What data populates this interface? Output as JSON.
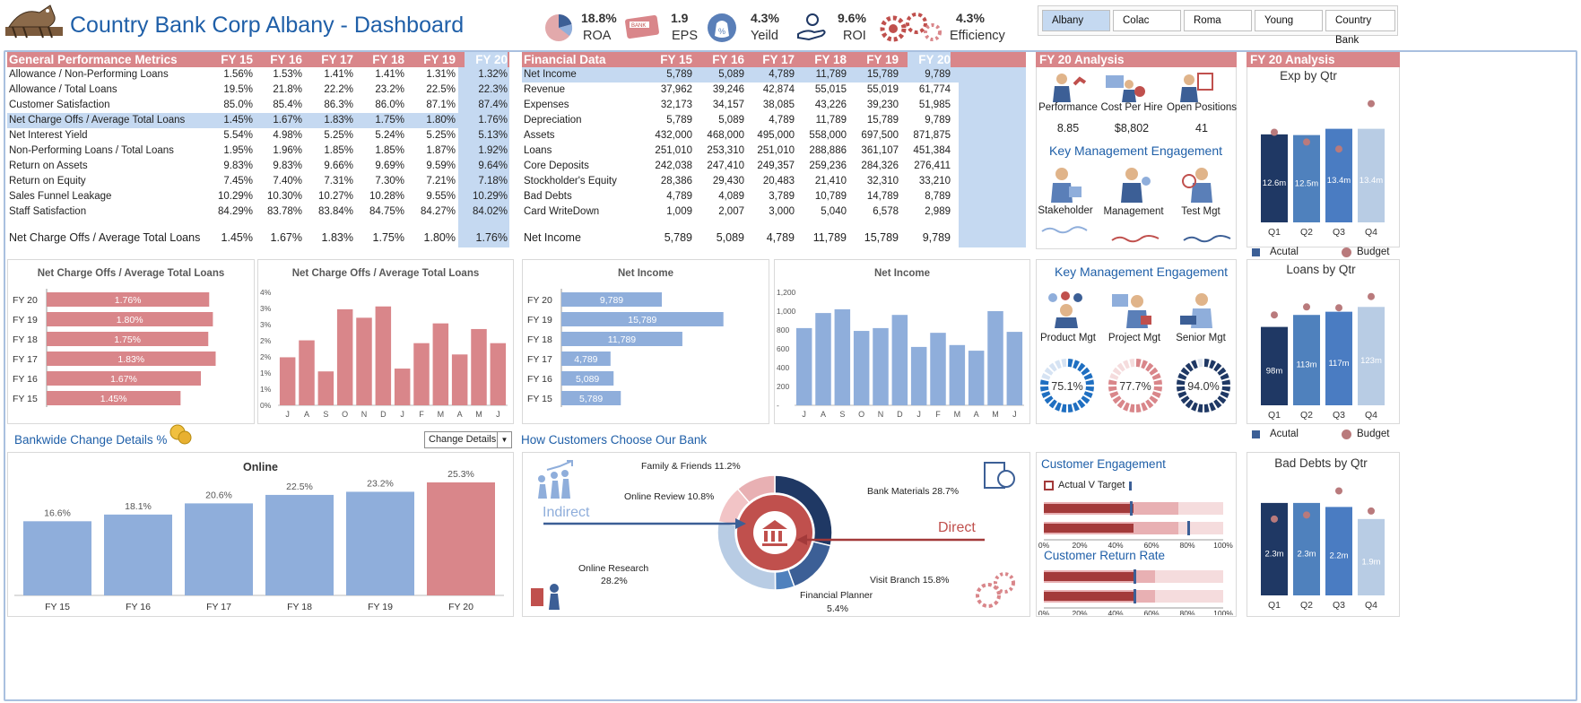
{
  "header": {
    "title": "Country Bank Corp Albany - Dashboard",
    "kpis": [
      {
        "value": "18.8%",
        "label": "ROA",
        "icon": "pie-chart-icon"
      },
      {
        "value": "1.9",
        "label": "EPS",
        "icon": "bank-card-icon"
      },
      {
        "value": "4.3%",
        "label": "Yeild",
        "icon": "money-bag-icon"
      },
      {
        "value": "9.6%",
        "label": "ROI",
        "icon": "hand-coin-icon"
      },
      {
        "value": "4.3%",
        "label": "Efficiency",
        "icon": "gears-icon"
      }
    ],
    "branches": [
      "Albany",
      "Colac",
      "Roma",
      "Young",
      "Country Bank"
    ],
    "selected_branch": "Albany"
  },
  "colors": {
    "red": "#d9868a",
    "blue": "#8faedb",
    "navy": "#1f3864",
    "lightblue": "#c5d9f1"
  },
  "gpm": {
    "headers": [
      "General Performance Metrics",
      "FY 15",
      "FY 16",
      "FY 17",
      "FY 18",
      "FY 19",
      "FY 20"
    ],
    "rows": [
      {
        "name": "Allowance / Non-Performing Loans",
        "v": [
          "1.56%",
          "1.53%",
          "1.41%",
          "1.41%",
          "1.31%",
          "1.32%"
        ]
      },
      {
        "name": "Allowance / Total Loans",
        "v": [
          "19.5%",
          "21.8%",
          "22.2%",
          "23.2%",
          "22.5%",
          "22.3%"
        ]
      },
      {
        "name": "Customer Satisfaction",
        "v": [
          "85.0%",
          "85.4%",
          "86.3%",
          "86.0%",
          "87.1%",
          "87.4%"
        ]
      },
      {
        "name": "Net Charge Offs / Average Total Loans",
        "v": [
          "1.45%",
          "1.67%",
          "1.83%",
          "1.75%",
          "1.80%",
          "1.76%"
        ]
      },
      {
        "name": "Net Interest Yield",
        "v": [
          "5.54%",
          "4.98%",
          "5.25%",
          "5.24%",
          "5.25%",
          "5.13%"
        ]
      },
      {
        "name": "Non-Performing Loans / Total Loans",
        "v": [
          "1.95%",
          "1.96%",
          "1.85%",
          "1.85%",
          "1.87%",
          "1.92%"
        ]
      },
      {
        "name": "Return on Assets",
        "v": [
          "9.83%",
          "9.83%",
          "9.66%",
          "9.69%",
          "9.59%",
          "9.64%"
        ]
      },
      {
        "name": "Return on Equity",
        "v": [
          "7.45%",
          "7.40%",
          "7.31%",
          "7.30%",
          "7.21%",
          "7.18%"
        ]
      },
      {
        "name": "Sales Funnel Leakage",
        "v": [
          "10.29%",
          "10.30%",
          "10.27%",
          "10.28%",
          "9.55%",
          "10.29%"
        ]
      },
      {
        "name": "Staff Satisfaction",
        "v": [
          "84.29%",
          "83.78%",
          "83.84%",
          "84.75%",
          "84.27%",
          "84.02%"
        ]
      }
    ],
    "summary": {
      "name": "Net Charge Offs / Average Total Loans",
      "v": [
        "1.45%",
        "1.67%",
        "1.83%",
        "1.75%",
        "1.80%",
        "1.76%"
      ]
    }
  },
  "fin": {
    "headers": [
      "Financial Data",
      "FY 15",
      "FY 16",
      "FY 17",
      "FY 18",
      "FY 19",
      "FY 20"
    ],
    "rows": [
      {
        "name": "Net Income",
        "v": [
          "5,789",
          "5,089",
          "4,789",
          "11,789",
          "15,789",
          "9,789"
        ]
      },
      {
        "name": "Revenue",
        "v": [
          "37,962",
          "39,246",
          "42,874",
          "55,015",
          "55,019",
          "61,774"
        ]
      },
      {
        "name": "Expenses",
        "v": [
          "32,173",
          "34,157",
          "38,085",
          "43,226",
          "39,230",
          "51,985"
        ]
      },
      {
        "name": "Depreciation",
        "v": [
          "5,789",
          "5,089",
          "4,789",
          "11,789",
          "15,789",
          "9,789"
        ]
      },
      {
        "name": "Assets",
        "v": [
          "432,000",
          "468,000",
          "495,000",
          "558,000",
          "697,500",
          "871,875"
        ]
      },
      {
        "name": "Loans",
        "v": [
          "251,010",
          "253,310",
          "251,010",
          "288,886",
          "361,107",
          "451,384"
        ]
      },
      {
        "name": "Core Deposits",
        "v": [
          "242,038",
          "247,410",
          "249,357",
          "259,236",
          "284,326",
          "276,411"
        ]
      },
      {
        "name": "Stockholder's Equity",
        "v": [
          "28,386",
          "29,430",
          "20,483",
          "21,410",
          "32,310",
          "33,210"
        ]
      },
      {
        "name": "Bad Debts",
        "v": [
          "4,789",
          "4,089",
          "3,789",
          "10,789",
          "14,789",
          "8,789"
        ]
      },
      {
        "name": "Card WriteDown",
        "v": [
          "1,009",
          "2,007",
          "3,000",
          "5,040",
          "6,578",
          "2,989"
        ]
      }
    ],
    "summary": {
      "name": "Net Income",
      "v": [
        "5,789",
        "5,089",
        "4,789",
        "11,789",
        "15,789",
        "9,789"
      ]
    }
  },
  "fy20": {
    "title": "FY 20 Analysis",
    "stats": [
      {
        "label": "Performance",
        "value": "8.85",
        "icon": "performance-person-icon"
      },
      {
        "label": "Cost Per Hire",
        "value": "$8,802",
        "icon": "cost-per-hire-icon"
      },
      {
        "label": "Open Positions",
        "value": "41",
        "icon": "open-positions-icon"
      }
    ],
    "kme_title": "Key Management Engagement",
    "kme_people": [
      {
        "label": "Stakeholder",
        "icon": "stakeholder-person-icon"
      },
      {
        "label": "Management",
        "icon": "management-person-icon"
      },
      {
        "label": "Test Mgt",
        "icon": "test-mgt-person-icon"
      }
    ]
  },
  "kme2": {
    "title": "Key Management Engagement",
    "people": [
      {
        "label": "Product Mgt",
        "value": "75.1%",
        "pct": 75.1,
        "icon": "product-mgt-icon"
      },
      {
        "label": "Project Mgt",
        "value": "77.7%",
        "pct": 77.7,
        "icon": "project-mgt-icon"
      },
      {
        "label": "Senior Mgt",
        "value": "94.0%",
        "pct": 94.0,
        "icon": "senior-mgt-icon"
      }
    ]
  },
  "legend": {
    "actual": "Acutal",
    "budget": "Budget"
  },
  "bankwide": {
    "title": "Bankwide Change Details %",
    "dropdown": "Change Details"
  },
  "customers": {
    "title": "How Customers Choose Our Bank",
    "indirect": "Indirect",
    "direct": "Direct",
    "labels": [
      {
        "text": "Family & Friends 11.2%"
      },
      {
        "text": "Online Review 10.8%"
      },
      {
        "text": "Bank Materials 28.7%"
      },
      {
        "text": "Online Research"
      },
      {
        "text": "28.2%"
      },
      {
        "text": "Visit Branch 15.8%"
      },
      {
        "text": "Financial Planner"
      },
      {
        "text": "5.4%"
      }
    ]
  },
  "engagement": {
    "title1": "Customer Engagement",
    "legend": "Actual V Target",
    "title2": "Customer Return Rate",
    "axis": [
      "0%",
      "20%",
      "40%",
      "60%",
      "80%",
      "100%"
    ]
  },
  "chart_data": [
    {
      "id": "nco-hbar",
      "type": "bar",
      "orientation": "horizontal",
      "title": "Net Charge Offs / Average Total Loans",
      "categories": [
        "FY 20",
        "FY 19",
        "FY 18",
        "FY 17",
        "FY 16",
        "FY 15"
      ],
      "values": [
        1.76,
        1.8,
        1.75,
        1.83,
        1.67,
        1.45
      ],
      "labels": [
        "1.76%",
        "1.80%",
        "1.75%",
        "1.83%",
        "1.67%",
        "1.45%"
      ],
      "xlim": [
        0,
        2.0
      ]
    },
    {
      "id": "nco-monthly",
      "type": "bar",
      "title": "Net Charge Offs / Average Total Loans",
      "categories": [
        "J",
        "A",
        "S",
        "O",
        "N",
        "D",
        "J",
        "F",
        "M",
        "A",
        "M",
        "J"
      ],
      "values": [
        1.7,
        2.3,
        1.2,
        3.4,
        3.1,
        3.5,
        1.3,
        2.2,
        2.9,
        1.8,
        2.7,
        2.2
      ],
      "yticks": [
        "0%",
        "1%",
        "1%",
        "2%",
        "2%",
        "3%",
        "3%",
        "4%"
      ],
      "ylim": [
        0,
        4
      ]
    },
    {
      "id": "netincome-hbar",
      "type": "bar",
      "orientation": "horizontal",
      "title": "Net Income",
      "categories": [
        "FY 20",
        "FY 19",
        "FY 18",
        "FY 17",
        "FY 16",
        "FY 15"
      ],
      "values": [
        9789,
        15789,
        11789,
        4789,
        5089,
        5789
      ],
      "labels": [
        "9,789",
        "15,789",
        "11,789",
        "4,789",
        "5,089",
        "5,789"
      ],
      "xlim": [
        0,
        18000
      ]
    },
    {
      "id": "netincome-monthly",
      "type": "bar",
      "title": "Net Income",
      "categories": [
        "J",
        "A",
        "S",
        "O",
        "N",
        "D",
        "J",
        "F",
        "M",
        "A",
        "M",
        "J"
      ],
      "values": [
        820,
        980,
        1020,
        790,
        820,
        960,
        620,
        770,
        640,
        580,
        1000,
        780
      ],
      "yticks": [
        "-",
        "200",
        "400",
        "600",
        "800",
        "1,000",
        "1,200"
      ],
      "ylim": [
        0,
        1200
      ]
    },
    {
      "id": "exp-qtr",
      "type": "bar",
      "title": "Exp by Qtr",
      "categories": [
        "Q1",
        "Q2",
        "Q3",
        "Q4"
      ],
      "values": [
        12.6,
        12.5,
        13.4,
        13.4
      ],
      "budget": [
        12.9,
        11.5,
        10.5,
        17.0
      ],
      "labels": [
        "12.6m",
        "12.5m",
        "13.4m",
        "13.4m"
      ],
      "ylim": [
        0,
        19
      ]
    },
    {
      "id": "loans-qtr",
      "type": "bar",
      "title": "Loans by Qtr",
      "categories": [
        "Q1",
        "Q2",
        "Q3",
        "Q4"
      ],
      "values": [
        98,
        113,
        117,
        123
      ],
      "budget": [
        113,
        123,
        122,
        136
      ],
      "labels": [
        "98m",
        "113m",
        "117m",
        "123m"
      ],
      "ylim": [
        0,
        148
      ]
    },
    {
      "id": "baddebts-qtr",
      "type": "bar",
      "title": "Bad Debts by Qtr",
      "categories": [
        "Q1",
        "Q2",
        "Q3",
        "Q4"
      ],
      "values": [
        2.3,
        2.3,
        2.2,
        1.9
      ],
      "budget": [
        1.9,
        2.0,
        2.6,
        2.1
      ],
      "labels": [
        "2.3m",
        "2.3m",
        "2.2m",
        "1.9m"
      ],
      "ylim": [
        0,
        2.9
      ]
    },
    {
      "id": "online",
      "type": "bar",
      "title": "Online",
      "categories": [
        "FY 15",
        "FY 16",
        "FY 17",
        "FY 18",
        "FY 19",
        "FY 20"
      ],
      "values": [
        16.6,
        18.1,
        20.6,
        22.5,
        23.2,
        25.3
      ],
      "labels": [
        "16.6%",
        "18.1%",
        "20.6%",
        "22.5%",
        "23.2%",
        "25.3%"
      ],
      "ylim": [
        0,
        26.5
      ]
    },
    {
      "id": "customers-donut",
      "type": "pie",
      "title": "How Customers Choose Our Bank",
      "categories": [
        "Bank Materials",
        "Visit Branch",
        "Financial Planner",
        "Online Research",
        "Online Review",
        "Family & Friends"
      ],
      "values": [
        28.7,
        15.8,
        5.4,
        28.2,
        10.8,
        11.2
      ]
    },
    {
      "id": "engagement-bullets",
      "type": "bar",
      "title": "Customer Engagement",
      "series": [
        {
          "name": "Customer Engagement",
          "actual": [
            50,
            50
          ],
          "target": [
            48,
            80
          ],
          "band": [
            75,
            100
          ]
        },
        {
          "name": "Customer Return Rate",
          "actual": [
            50,
            50
          ],
          "target": [
            50,
            50
          ],
          "band": [
            62,
            100
          ]
        }
      ],
      "xlim": [
        0,
        100
      ]
    }
  ]
}
